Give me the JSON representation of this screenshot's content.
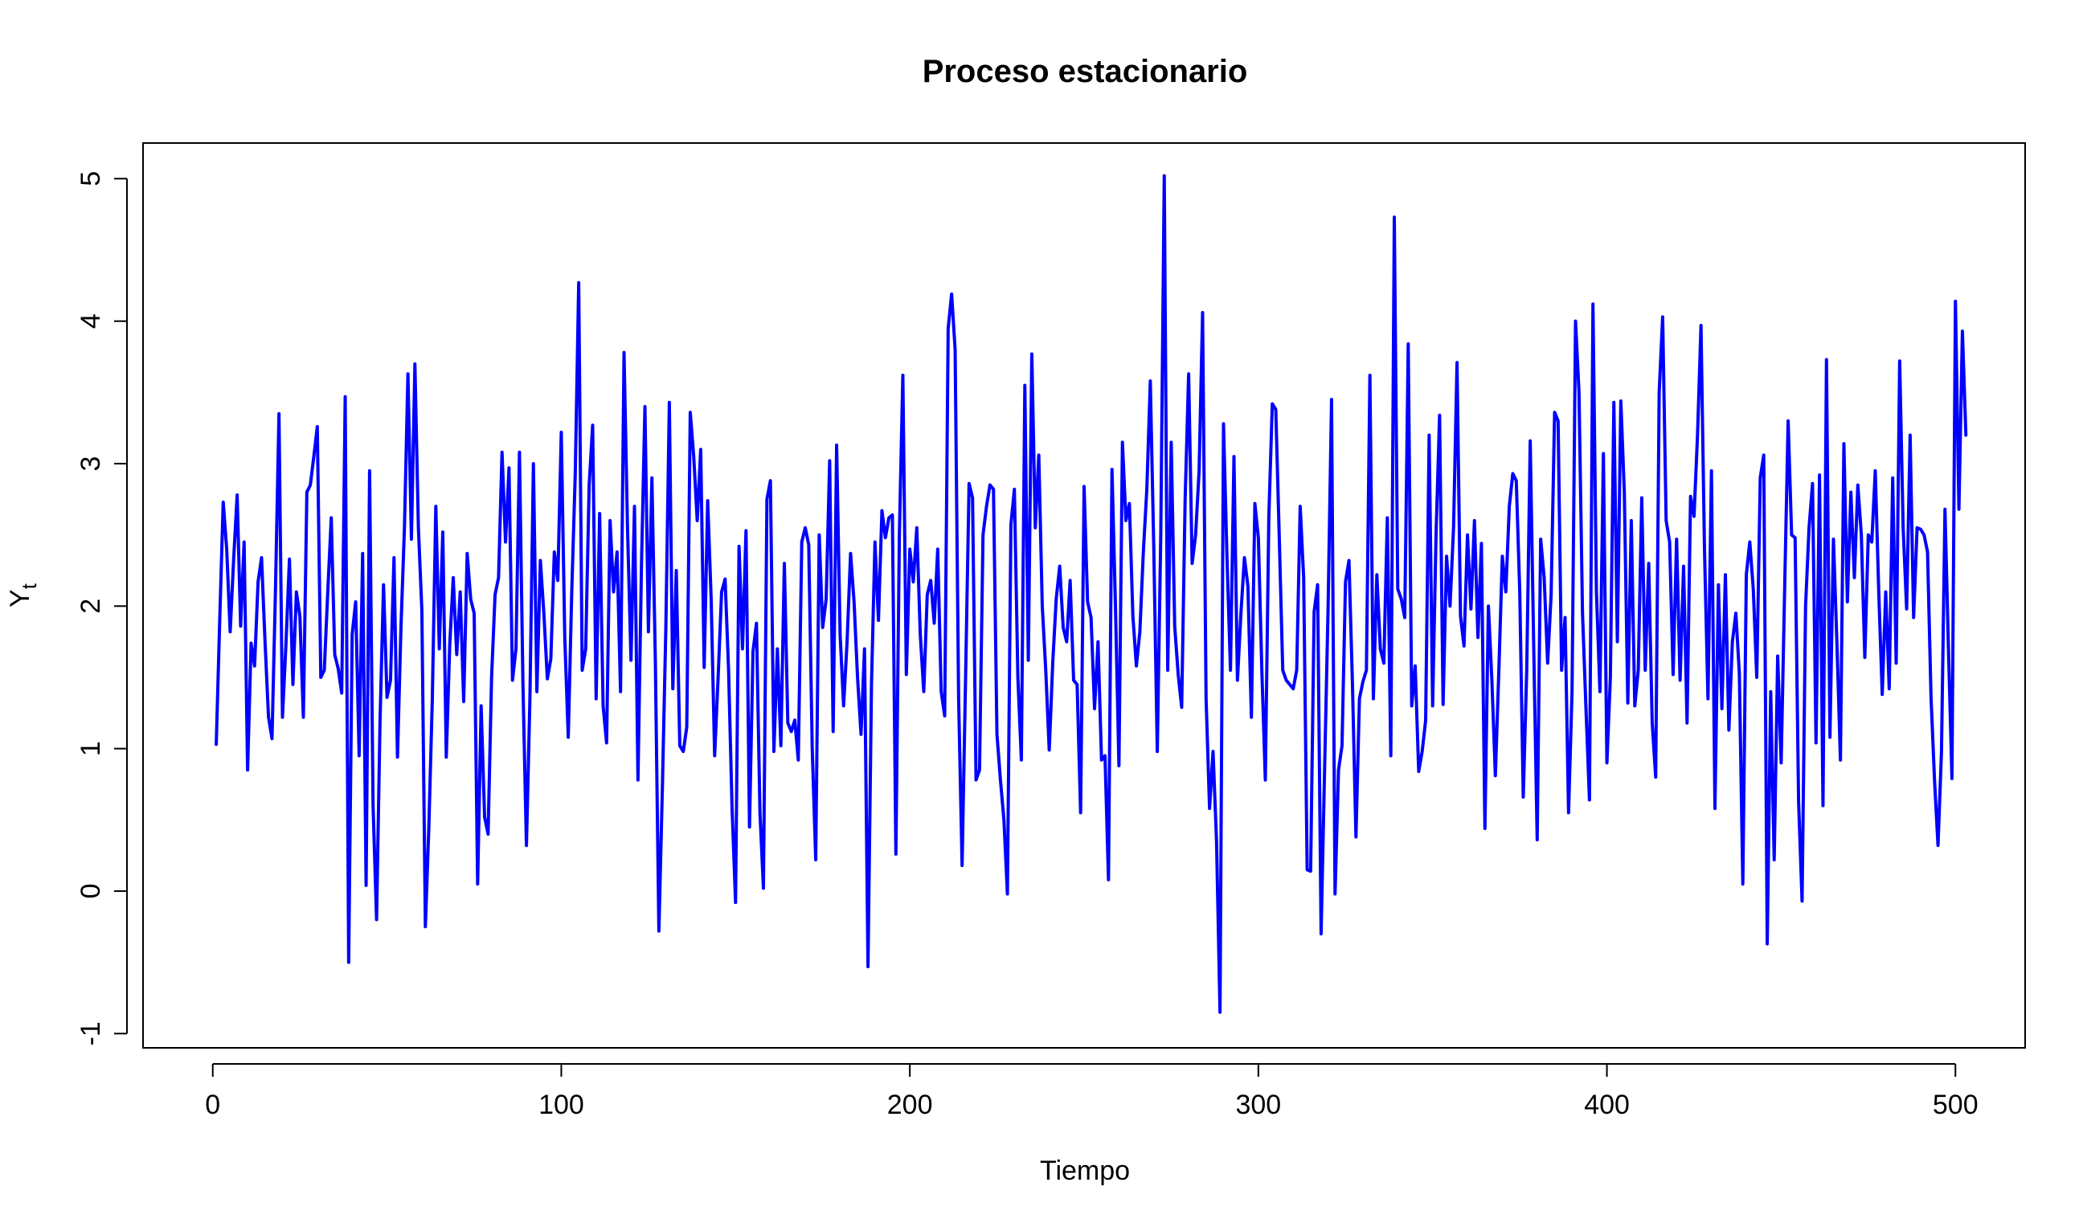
{
  "chart_data": {
    "type": "line",
    "title": "Proceso estacionario",
    "xlabel": "Tiempo",
    "ylabel": "Y",
    "ylabel_subscript": "t",
    "xlim": [
      -20,
      520
    ],
    "ylim": [
      -1.1,
      5.25
    ],
    "xticks": [
      0,
      100,
      200,
      300,
      400,
      500
    ],
    "xtick_labels": [
      "0",
      "100",
      "200",
      "300",
      "400",
      "500"
    ],
    "yticks": [
      -1,
      0,
      1,
      2,
      3,
      4,
      5
    ],
    "ytick_labels": [
      "-1",
      "0",
      "1",
      "2",
      "3",
      "4",
      "5"
    ],
    "grid": false,
    "line_color": "#0000FF",
    "series": [
      {
        "x_start": 1,
        "x_step": 1,
        "values": [
          1.03,
          1.9,
          2.73,
          2.4,
          1.82,
          2.33,
          2.78,
          1.86,
          2.45,
          0.85,
          1.74,
          1.58,
          2.17,
          2.34,
          1.75,
          1.22,
          1.07,
          2.12,
          3.35,
          1.22,
          1.73,
          2.33,
          1.45,
          2.1,
          1.93,
          1.22,
          2.8,
          2.85,
          3.05,
          3.26,
          1.5,
          1.55,
          2.1,
          2.62,
          1.66,
          1.56,
          1.39,
          3.47,
          -0.5,
          1.8,
          2.03,
          0.95,
          2.37,
          0.04,
          2.95,
          0.6,
          -0.2,
          1.2,
          2.15,
          1.36,
          1.48,
          2.34,
          0.94,
          1.85,
          2.55,
          3.63,
          2.47,
          3.7,
          2.55,
          1.97,
          -0.25,
          0.45,
          1.35,
          2.7,
          1.7,
          2.52,
          0.94,
          1.73,
          2.2,
          1.66,
          2.1,
          1.33,
          2.37,
          2.05,
          1.95,
          0.05,
          1.3,
          0.52,
          0.4,
          1.5,
          2.08,
          2.2,
          3.08,
          2.45,
          2.97,
          1.48,
          1.7,
          3.08,
          1.45,
          0.32,
          1.35,
          3.0,
          1.4,
          2.32,
          1.95,
          1.49,
          1.63,
          2.38,
          2.18,
          3.22,
          1.78,
          1.08,
          2.1,
          2.92,
          4.27,
          1.55,
          1.7,
          2.85,
          3.27,
          1.35,
          2.65,
          1.3,
          1.04,
          2.6,
          2.1,
          2.38,
          1.4,
          3.78,
          2.55,
          1.62,
          2.7,
          0.78,
          2.28,
          3.4,
          1.82,
          2.9,
          1.6,
          -0.28,
          0.72,
          1.85,
          3.43,
          1.42,
          2.25,
          1.02,
          0.98,
          1.15,
          3.36,
          3.05,
          2.6,
          3.1,
          1.57,
          2.74,
          2.05,
          0.95,
          1.5,
          2.1,
          2.19,
          1.55,
          0.58,
          -0.08,
          2.42,
          1.7,
          2.53,
          0.45,
          1.68,
          1.88,
          0.55,
          0.02,
          2.75,
          2.88,
          0.98,
          1.7,
          1.02,
          2.3,
          1.18,
          1.12,
          1.2,
          0.92,
          2.45,
          2.55,
          2.43,
          1.0,
          0.22,
          2.5,
          1.85,
          2.05,
          3.02,
          1.12,
          3.13,
          1.8,
          1.3,
          1.75,
          2.37,
          2.03,
          1.5,
          1.1,
          1.7,
          -0.53,
          1.45,
          2.45,
          1.9,
          2.67,
          2.48,
          2.62,
          2.64,
          0.26,
          2.5,
          3.62,
          1.52,
          2.4,
          2.17,
          2.55,
          1.8,
          1.4,
          2.08,
          2.18,
          1.88,
          2.4,
          1.4,
          1.23,
          3.95,
          4.19,
          3.8,
          1.35,
          0.18,
          1.5,
          2.86,
          2.76,
          0.78,
          0.85,
          2.5,
          2.7,
          2.85,
          2.82,
          1.1,
          0.78,
          0.5,
          -0.02,
          2.57,
          2.82,
          1.5,
          0.92,
          3.55,
          1.62,
          3.77,
          2.55,
          3.06,
          2.0,
          1.55,
          0.99,
          1.6,
          2.05,
          2.28,
          1.85,
          1.75,
          2.18,
          1.48,
          1.45,
          0.55,
          2.84,
          2.03,
          1.92,
          1.28,
          1.75,
          0.92,
          0.95,
          0.08,
          2.96,
          2.0,
          0.88,
          3.15,
          2.6,
          2.72,
          1.93,
          1.58,
          1.82,
          2.38,
          2.82,
          3.58,
          2.4,
          0.98,
          2.5,
          5.02,
          1.55,
          3.15,
          1.86,
          1.52,
          1.29,
          2.76,
          3.63,
          2.3,
          2.5,
          2.95,
          4.06,
          1.35,
          0.58,
          0.98,
          0.35,
          -0.85,
          3.28,
          2.34,
          1.55,
          3.05,
          1.48,
          1.95,
          2.34,
          2.14,
          1.22,
          2.72,
          2.48,
          1.55,
          0.78,
          2.62,
          3.42,
          3.38,
          2.48,
          1.55,
          1.48,
          1.45,
          1.42,
          1.55,
          2.7,
          2.2,
          0.15,
          0.14,
          1.96,
          2.15,
          -0.3,
          0.85,
          1.98,
          3.45,
          -0.02,
          0.85,
          1.02,
          2.17,
          2.32,
          1.45,
          0.38,
          1.35,
          1.47,
          1.55,
          3.62,
          1.35,
          2.22,
          1.7,
          1.6,
          2.62,
          0.95,
          4.73,
          2.12,
          2.05,
          1.92,
          3.84,
          1.3,
          1.58,
          0.84,
          0.98,
          1.2,
          3.2,
          1.3,
          2.52,
          3.34,
          1.31,
          2.35,
          2.0,
          2.55,
          3.71,
          1.93,
          1.72,
          2.5,
          1.98,
          2.6,
          1.78,
          2.44,
          0.44,
          2.0,
          1.48,
          0.81,
          1.55,
          2.35,
          2.1,
          2.7,
          2.93,
          2.88,
          2.1,
          0.66,
          1.55,
          3.16,
          1.72,
          0.36,
          2.47,
          2.2,
          1.6,
          2.08,
          3.36,
          3.3,
          1.55,
          1.92,
          0.55,
          1.4,
          4.0,
          3.5,
          1.95,
          1.28,
          0.64,
          4.12,
          2.1,
          1.4,
          3.07,
          0.9,
          1.5,
          3.43,
          1.75,
          3.44,
          2.8,
          1.32,
          2.6,
          1.3,
          1.55,
          2.76,
          1.55,
          2.3,
          1.18,
          0.8,
          3.5,
          4.03,
          2.6,
          2.45,
          1.52,
          2.47,
          1.48,
          2.28,
          1.18,
          2.77,
          2.63,
          3.2,
          3.97,
          2.4,
          1.35,
          2.95,
          0.58,
          2.15,
          1.28,
          2.22,
          1.13,
          1.75,
          1.95,
          1.53,
          0.05,
          2.22,
          2.45,
          2.12,
          1.5,
          2.9,
          3.06,
          -0.37,
          1.4,
          0.22,
          1.65,
          0.9,
          2.12,
          3.3,
          2.5,
          2.48,
          0.63,
          -0.07,
          2.0,
          2.55,
          2.86,
          1.04,
          2.92,
          0.6,
          3.73,
          1.08,
          2.47,
          1.74,
          0.92,
          3.14,
          2.03,
          2.8,
          2.2,
          2.85,
          2.5,
          1.64,
          2.5,
          2.45,
          2.95,
          2.1,
          1.38,
          2.1,
          1.42,
          2.9,
          1.6,
          3.72,
          2.55,
          1.98,
          3.2,
          1.92,
          2.55,
          2.54,
          2.5,
          2.38,
          1.36,
          0.78,
          0.32,
          0.98,
          2.68,
          1.7,
          0.79,
          4.14,
          2.68,
          3.93,
          3.2
        ]
      }
    ]
  }
}
